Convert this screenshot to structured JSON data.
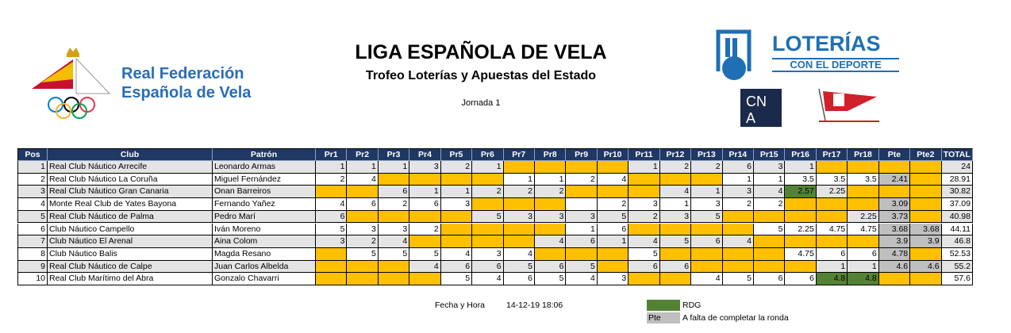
{
  "header": {
    "federation": [
      "Real Federación",
      "Española de Vela"
    ],
    "title": "LIGA ESPAÑOLA DE VELA",
    "subtitle": "Trofeo Loterías y Apuestas del Estado",
    "round": "Jornada 1",
    "sponsor": "LOTERÍAS",
    "sponsor_tagline": "CON EL DEPORTE",
    "club_logo": [
      "CN",
      "A"
    ]
  },
  "table": {
    "columns": [
      "Pos",
      "Club",
      "Patrón",
      "Pr1",
      "Pr2",
      "Pr3",
      "Pr4",
      "Pr5",
      "Pr6",
      "Pr7",
      "Pr8",
      "Pr9",
      "Pr10",
      "Pr11",
      "Pr12",
      "Pr13",
      "Pr14",
      "Pr15",
      "Pr16",
      "Pr17",
      "Pr18",
      "Pte",
      "Pte2",
      "TOTAL"
    ],
    "rows": [
      [
        1,
        "Real Club Náutico Arrecife",
        "Leonardo Armas",
        1,
        1,
        1,
        3,
        2,
        1,
        null,
        null,
        null,
        null,
        1,
        2,
        2,
        6,
        3,
        1,
        null,
        null,
        null,
        null,
        24
      ],
      [
        2,
        "Real Club Náutico La Coruña",
        "Miguel Fernández",
        2,
        4,
        null,
        null,
        null,
        null,
        1,
        1,
        2,
        4,
        null,
        null,
        null,
        1,
        1,
        3.5,
        3.5,
        3.5,
        2.41,
        null,
        28.91
      ],
      [
        3,
        "Real Club Náutico Gran Canaria",
        "Onan Barreiros",
        null,
        null,
        6,
        1,
        1,
        2,
        2,
        2,
        null,
        null,
        null,
        4,
        1,
        3,
        4,
        2.57,
        2.25,
        null,
        null,
        null,
        30.82
      ],
      [
        4,
        "Monte Real Club de Yates Bayona",
        "Fernando Yañez",
        4,
        6,
        2,
        6,
        3,
        null,
        null,
        null,
        null,
        2,
        3,
        1,
        3,
        2,
        2,
        null,
        null,
        null,
        3.09,
        null,
        37.09
      ],
      [
        5,
        "Real Club Náutico de Palma",
        "Pedro Marí",
        6,
        null,
        null,
        null,
        null,
        5,
        3,
        3,
        3,
        5,
        2,
        3,
        5,
        null,
        null,
        null,
        null,
        2.25,
        3.73,
        null,
        40.98
      ],
      [
        6,
        "Club Náutico Campello",
        "Iván Moreno",
        5,
        3,
        3,
        2,
        null,
        null,
        null,
        null,
        1,
        6,
        null,
        null,
        null,
        null,
        5,
        2.25,
        4.75,
        4.75,
        3.68,
        3.68,
        44.11
      ],
      [
        7,
        "Club Náutico El Arenal",
        "Aina Colom",
        3,
        2,
        4,
        null,
        null,
        null,
        null,
        4,
        6,
        1,
        4,
        5,
        6,
        4,
        null,
        null,
        null,
        null,
        3.9,
        3.9,
        46.8
      ],
      [
        8,
        "Club Náutico Balis",
        "Magda Resano",
        null,
        5,
        5,
        5,
        4,
        3,
        4,
        null,
        null,
        null,
        5,
        null,
        null,
        null,
        null,
        4.75,
        6,
        6,
        4.78,
        null,
        52.53
      ],
      [
        9,
        "Real Club Náutico de Calpe",
        "Juan Carlos Albelda",
        null,
        null,
        null,
        4,
        6,
        6,
        5,
        6,
        5,
        null,
        6,
        6,
        null,
        null,
        null,
        null,
        1,
        1,
        4.6,
        4.6,
        55.2
      ],
      [
        10,
        "Real Club Marítimo del Abra",
        "Gonzalo Chavarri",
        null,
        null,
        null,
        null,
        5,
        4,
        6,
        5,
        4,
        3,
        null,
        null,
        4,
        5,
        6,
        6,
        4.8,
        4.8,
        null,
        null,
        57.6
      ]
    ]
  },
  "footer": {
    "date_label": "Fecha y Hora",
    "date": "14-12-19 18:06",
    "rdg": "RDG",
    "pte_key": "Pte",
    "pte_label": "A falta de completar la ronda"
  }
}
